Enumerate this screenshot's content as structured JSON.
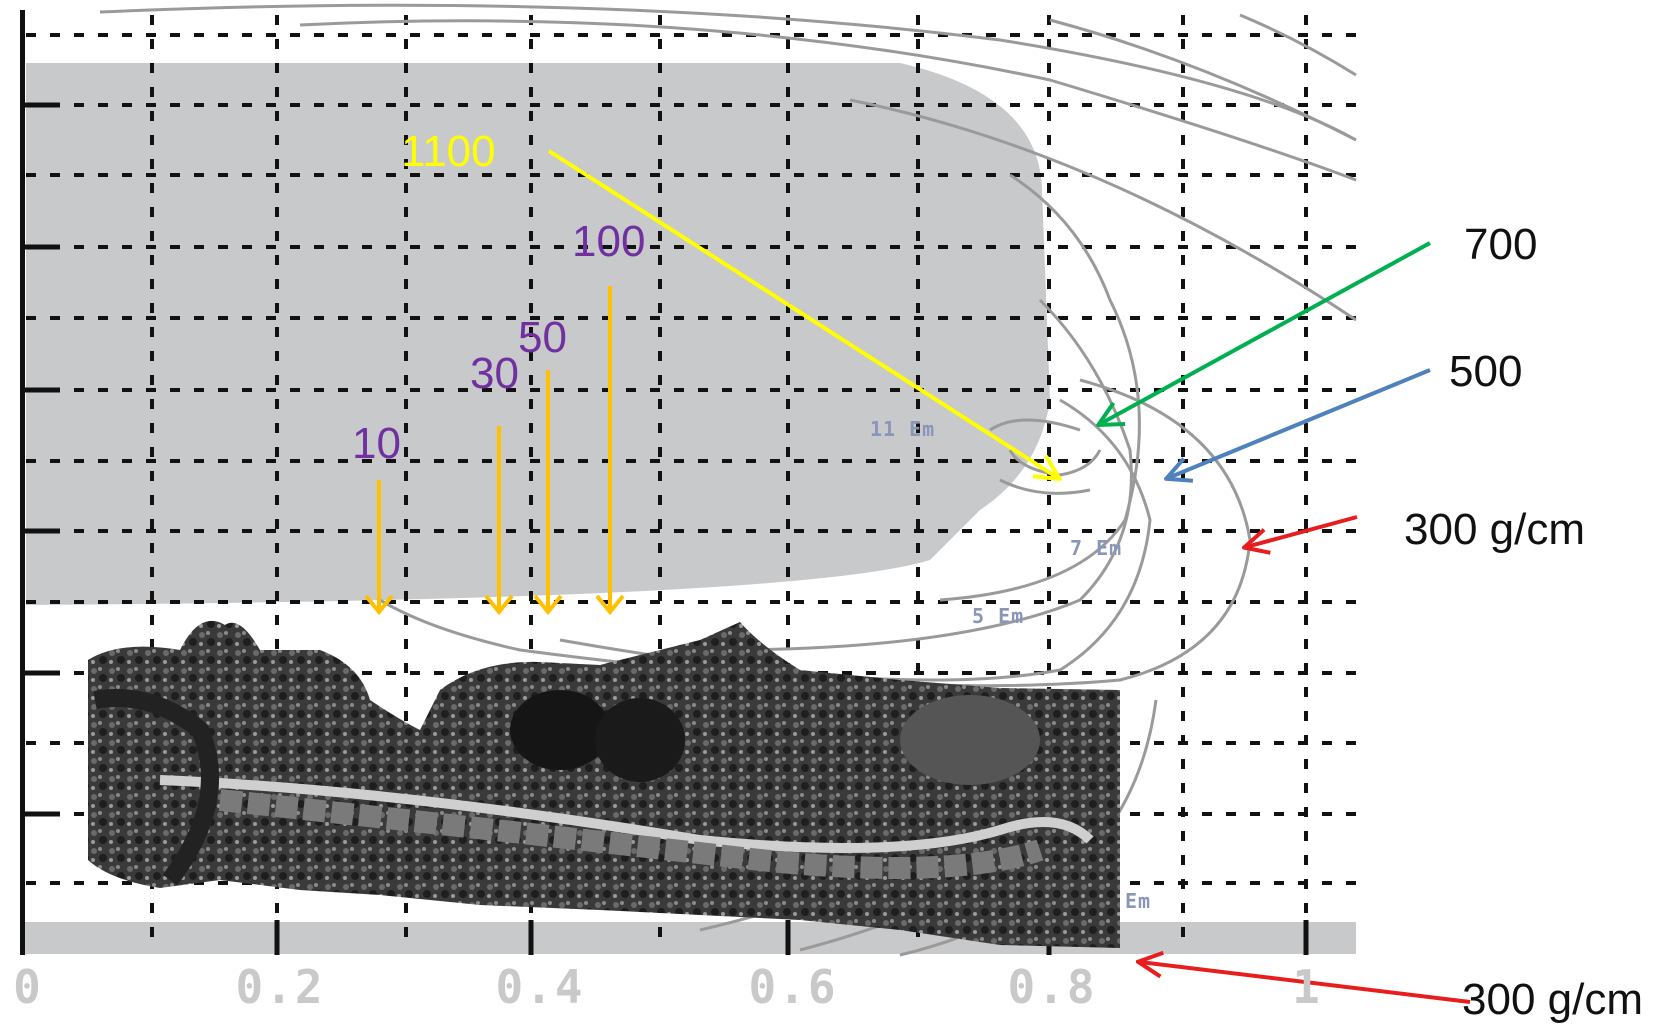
{
  "diagram": {
    "x_axis": {
      "tick_labels": [
        "0",
        "0.2",
        "0.4",
        "0.6",
        "0.8",
        "1"
      ]
    },
    "marker_labels": {
      "purple": [
        "10",
        "30",
        "50",
        "100"
      ],
      "yellow": "1100",
      "contours_right": [
        "700",
        "500",
        "300 g/cm"
      ],
      "bottom_right": "300 g/cm"
    },
    "contour_inline_labels": [
      "11 Em",
      "7 Em",
      "5 Em",
      "Em"
    ],
    "colors": {
      "gray_region": "#c8c9cb",
      "orange_arrow": "#ffc000",
      "yellow_arrow": "#ffff00",
      "green_arrow": "#00b050",
      "blue_arrow": "#4f81bd",
      "red_arrow": "#e81e1e",
      "purple_text": "#7030a0"
    }
  }
}
